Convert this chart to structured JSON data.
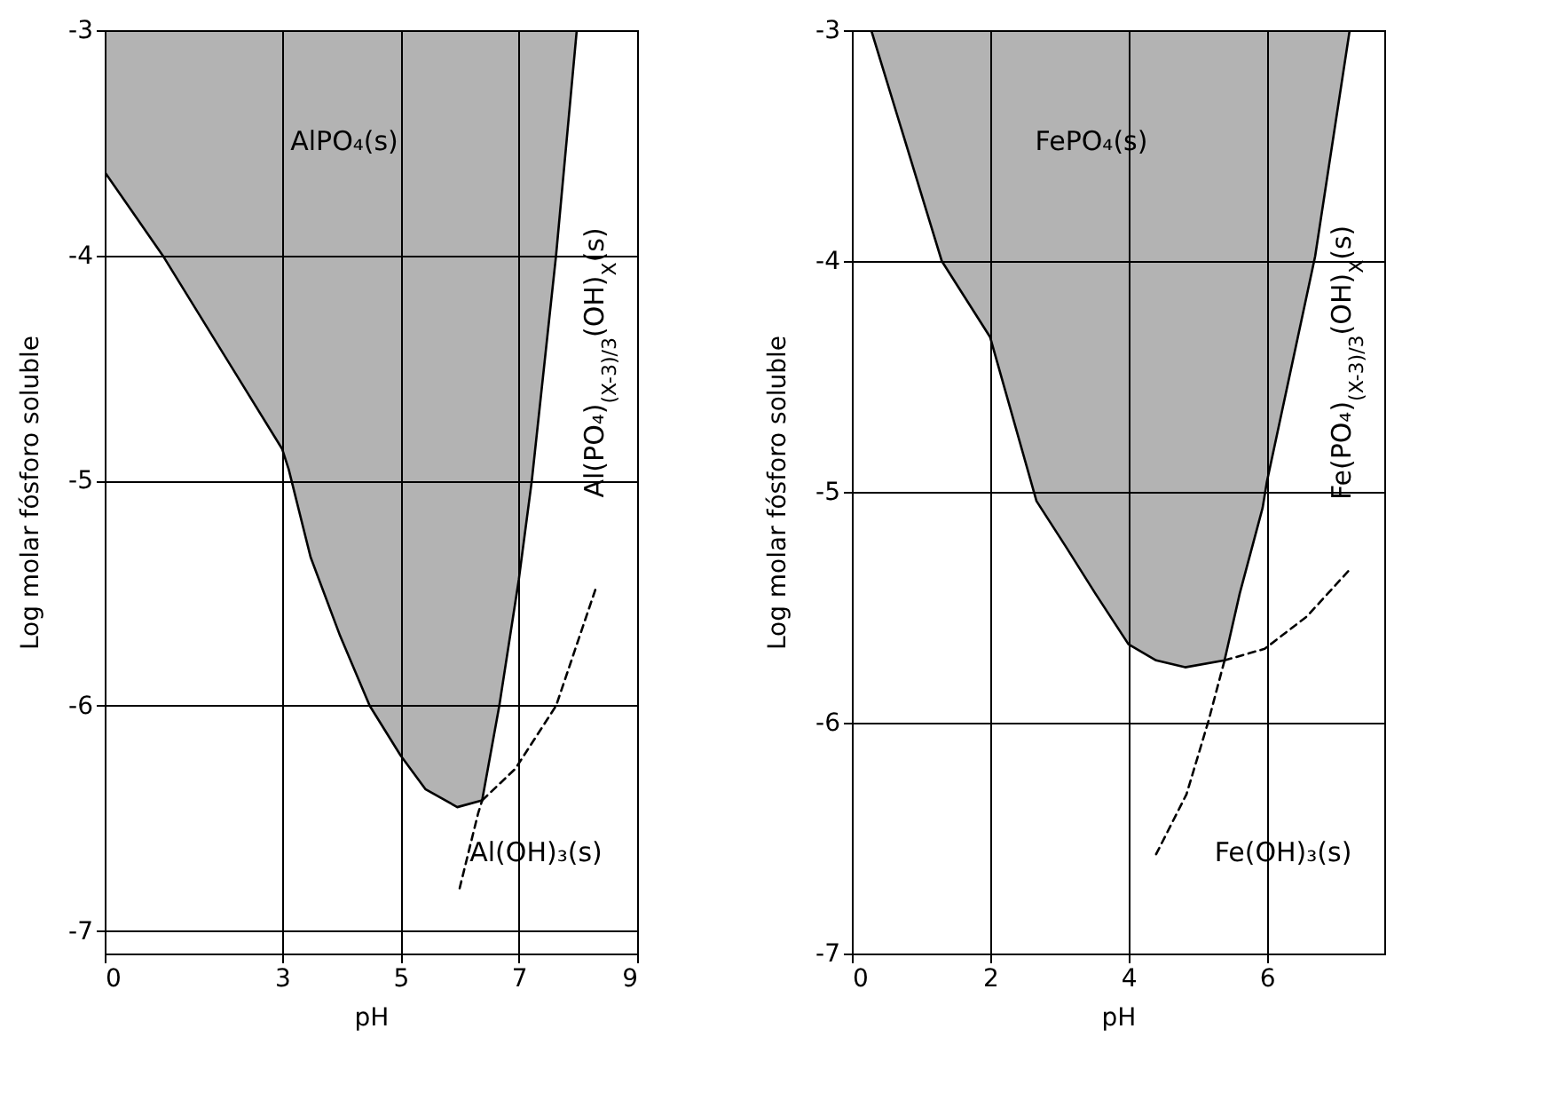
{
  "chart_data": [
    {
      "type": "line",
      "xlabel": "pH",
      "ylabel": "Log molar fósforo soluble",
      "xlim": [
        0,
        9
      ],
      "ylim": [
        -7.1,
        -3
      ],
      "xticks": [
        0,
        3,
        5,
        7,
        9
      ],
      "yticks": [
        -3,
        -4,
        -5,
        -6,
        -7
      ],
      "grid": true,
      "series": [
        {
          "type": "area",
          "color": "#b3b3b3",
          "x": [
            0,
            0.98,
            3,
            3.11,
            3.48,
            3.98,
            4.48,
            5,
            5.42,
            5.96,
            6.38,
            6.67,
            7,
            7.22,
            7.63,
            7.98
          ],
          "values": [
            -3.63,
            -4.0,
            -4.86,
            -4.95,
            -5.34,
            -5.69,
            -6.0,
            -6.22,
            -6.37,
            -6.45,
            -6.42,
            -6.0,
            -5.44,
            -5.0,
            -4.0,
            -3.0
          ]
        },
        {
          "type": "line",
          "color": "#000000",
          "line_style": "dashed",
          "x": [
            6.0,
            6.31,
            6.38
          ],
          "values": [
            -6.81,
            -6.48,
            -6.42
          ]
        },
        {
          "type": "line",
          "color": "#000000",
          "line_style": "dashed",
          "x": [
            6.38,
            6.94,
            7.63,
            8.3
          ],
          "values": [
            -6.42,
            -6.28,
            -6.0,
            -5.48
          ]
        }
      ],
      "annotations": [
        "AlPO₄(s)",
        "Al(PO₄)$_{(X-3)/3}$(OH)$_{X}$(s)",
        "Al(OH)₃(s)"
      ]
    },
    {
      "type": "line",
      "xlabel": "pH",
      "ylabel": "Log molar fósforo soluble",
      "xlim": [
        0,
        7.7
      ],
      "ylim": [
        -7,
        -3
      ],
      "xticks": [
        0,
        2,
        4,
        6
      ],
      "yticks": [
        -3,
        -4,
        -5,
        -6,
        -7
      ],
      "grid": true,
      "series": [
        {
          "type": "area",
          "color": "#b3b3b3",
          "x": [
            0.28,
            1.3,
            2,
            2.67,
            3.1,
            3.52,
            4.0,
            4.4,
            4.82,
            5.39,
            5.61,
            5.94,
            6.0,
            6.7,
            7.2
          ],
          "values": [
            -3.0,
            -4.0,
            -4.33,
            -5.04,
            -5.24,
            -5.44,
            -5.66,
            -5.73,
            -5.76,
            -5.73,
            -5.44,
            -5.07,
            -4.96,
            -3.98,
            -3.0
          ]
        },
        {
          "type": "line",
          "color": "#000000",
          "line_style": "dashed",
          "x": [
            4.4,
            4.84,
            5.16,
            5.39
          ],
          "values": [
            -6.57,
            -6.31,
            -5.99,
            -5.73
          ]
        },
        {
          "type": "line",
          "color": "#000000",
          "line_style": "dashed",
          "x": [
            5.39,
            5.97,
            6.58,
            7.19
          ],
          "values": [
            -5.73,
            -5.68,
            -5.54,
            -5.34
          ]
        }
      ],
      "annotations": [
        "FePO₄(s)",
        "Fe(PO₄)$_{(X-3)/3}$(OH)$_{X}$(s)",
        "Fe(OH)₃(s)"
      ]
    }
  ]
}
